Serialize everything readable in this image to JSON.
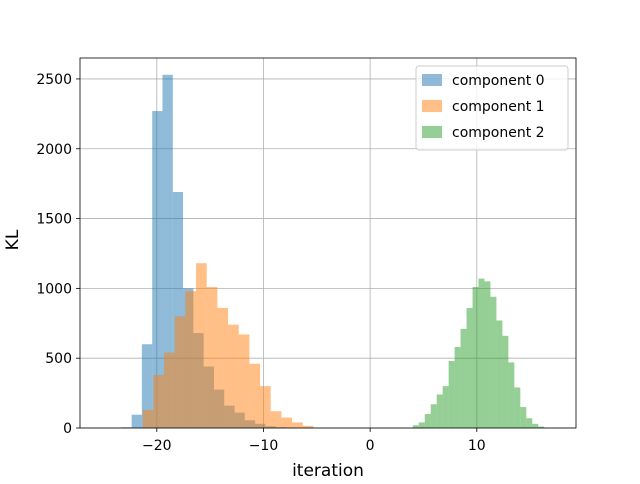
{
  "chart_data": {
    "type": "histogram",
    "xlabel": "iteration",
    "ylabel": "KL",
    "xlim": [
      -27.2,
      19.3
    ],
    "ylim": [
      0,
      2650
    ],
    "grid": true,
    "legend_placement": "top-right",
    "xticks": [
      -20,
      -10,
      0,
      10
    ],
    "xtick_labels": [
      "−20",
      "−10",
      "0",
      "10"
    ],
    "yticks": [
      0,
      500,
      1000,
      1500,
      2000,
      2500
    ],
    "ytick_labels": [
      "0",
      "500",
      "1000",
      "1500",
      "2000",
      "2500"
    ],
    "bar_opacity": 0.5,
    "series": [
      {
        "name": "component 0",
        "color": "#1f77b4",
        "bins": [
          {
            "x0": -23.33,
            "x1": -22.36,
            "count": 5
          },
          {
            "x0": -22.36,
            "x1": -21.4,
            "count": 95
          },
          {
            "x0": -21.4,
            "x1": -20.43,
            "count": 600
          },
          {
            "x0": -20.43,
            "x1": -19.47,
            "count": 2270
          },
          {
            "x0": -19.47,
            "x1": -18.5,
            "count": 2530
          },
          {
            "x0": -18.5,
            "x1": -17.54,
            "count": 1690
          },
          {
            "x0": -17.54,
            "x1": -16.57,
            "count": 1000
          },
          {
            "x0": -16.57,
            "x1": -15.61,
            "count": 680
          },
          {
            "x0": -15.61,
            "x1": -14.64,
            "count": 440
          },
          {
            "x0": -14.64,
            "x1": -13.68,
            "count": 275
          },
          {
            "x0": -13.68,
            "x1": -12.71,
            "count": 160
          },
          {
            "x0": -12.71,
            "x1": -11.75,
            "count": 110
          },
          {
            "x0": -11.75,
            "x1": -10.78,
            "count": 55
          },
          {
            "x0": -10.78,
            "x1": -9.82,
            "count": 30
          },
          {
            "x0": -9.82,
            "x1": -8.85,
            "count": 12
          },
          {
            "x0": -8.85,
            "x1": -7.89,
            "count": 5
          }
        ]
      },
      {
        "name": "component 1",
        "color": "#ff7f0e",
        "bins": [
          {
            "x0": -21.32,
            "x1": -20.32,
            "count": 130
          },
          {
            "x0": -20.32,
            "x1": -19.32,
            "count": 380
          },
          {
            "x0": -19.32,
            "x1": -18.32,
            "count": 540
          },
          {
            "x0": -18.32,
            "x1": -17.32,
            "count": 800
          },
          {
            "x0": -17.32,
            "x1": -16.32,
            "count": 980
          },
          {
            "x0": -16.32,
            "x1": -15.32,
            "count": 1180
          },
          {
            "x0": -15.32,
            "x1": -14.32,
            "count": 1010
          },
          {
            "x0": -14.32,
            "x1": -13.32,
            "count": 860
          },
          {
            "x0": -13.32,
            "x1": -12.32,
            "count": 740
          },
          {
            "x0": -12.32,
            "x1": -11.32,
            "count": 670
          },
          {
            "x0": -11.32,
            "x1": -10.32,
            "count": 460
          },
          {
            "x0": -10.32,
            "x1": -9.32,
            "count": 300
          },
          {
            "x0": -9.32,
            "x1": -8.32,
            "count": 120
          },
          {
            "x0": -8.32,
            "x1": -7.32,
            "count": 75
          },
          {
            "x0": -7.32,
            "x1": -6.32,
            "count": 40
          },
          {
            "x0": -6.32,
            "x1": -5.32,
            "count": 15
          }
        ]
      },
      {
        "name": "component 2",
        "color": "#2ca02c",
        "bins": [
          {
            "x0": 4.0,
            "x1": 4.56,
            "count": 20
          },
          {
            "x0": 4.56,
            "x1": 5.12,
            "count": 40
          },
          {
            "x0": 5.12,
            "x1": 5.68,
            "count": 100
          },
          {
            "x0": 5.68,
            "x1": 6.24,
            "count": 170
          },
          {
            "x0": 6.24,
            "x1": 6.8,
            "count": 240
          },
          {
            "x0": 6.8,
            "x1": 7.36,
            "count": 300
          },
          {
            "x0": 7.36,
            "x1": 7.92,
            "count": 480
          },
          {
            "x0": 7.92,
            "x1": 8.48,
            "count": 580
          },
          {
            "x0": 8.48,
            "x1": 9.04,
            "count": 710
          },
          {
            "x0": 9.04,
            "x1": 9.6,
            "count": 860
          },
          {
            "x0": 9.6,
            "x1": 10.16,
            "count": 1010
          },
          {
            "x0": 10.16,
            "x1": 10.72,
            "count": 1070
          },
          {
            "x0": 10.72,
            "x1": 11.28,
            "count": 1050
          },
          {
            "x0": 11.28,
            "x1": 11.84,
            "count": 940
          },
          {
            "x0": 11.84,
            "x1": 12.4,
            "count": 770
          },
          {
            "x0": 12.4,
            "x1": 12.96,
            "count": 660
          },
          {
            "x0": 12.96,
            "x1": 13.52,
            "count": 470
          },
          {
            "x0": 13.52,
            "x1": 14.08,
            "count": 290
          },
          {
            "x0": 14.08,
            "x1": 14.64,
            "count": 150
          },
          {
            "x0": 14.64,
            "x1": 15.2,
            "count": 70
          },
          {
            "x0": 15.2,
            "x1": 15.76,
            "count": 30
          },
          {
            "x0": 15.76,
            "x1": 16.32,
            "count": 10
          }
        ]
      }
    ]
  }
}
